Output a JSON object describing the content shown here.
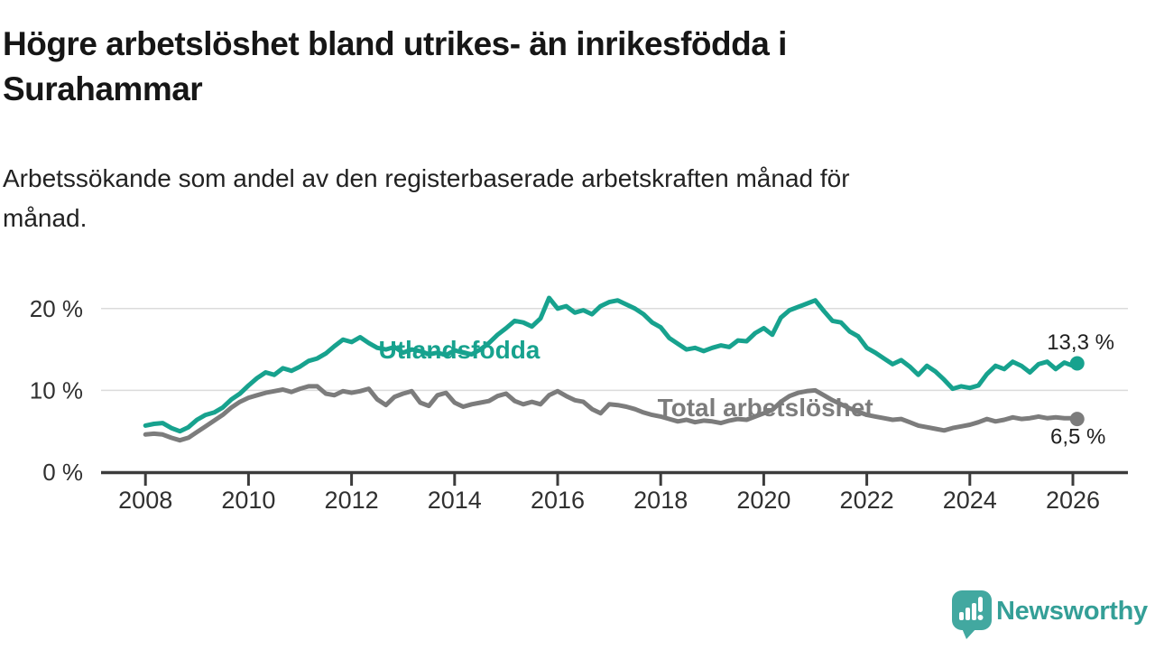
{
  "header": {
    "title_lines": [
      "Högre arbetslöshet bland utrikes- än inrikesfödda i",
      "Surahammar"
    ],
    "subtitle_lines": [
      "Arbetssökande som andel av den registerbaserade arbetskraften månad för",
      "månad."
    ]
  },
  "chart_data": {
    "type": "line",
    "title": "Högre arbetslöshet bland utrikes- än inrikesfödda i Surahammar",
    "subtitle": "Arbetssökande som andel av den registerbaserade arbetskraften månad för månad.",
    "unit": "%",
    "grid": "horizontal",
    "legend_position": "inline-labels",
    "xlim": [
      2007.14,
      2027.07
    ],
    "ylim": [
      0,
      24.6
    ],
    "y_ticks": [
      {
        "value": 0,
        "label": "0 %"
      },
      {
        "value": 10,
        "label": "10 %"
      },
      {
        "value": 20,
        "label": "20 %"
      }
    ],
    "x_ticks": [
      {
        "value": 2008,
        "label": "2008"
      },
      {
        "value": 2010,
        "label": "2010"
      },
      {
        "value": 2012,
        "label": "2012"
      },
      {
        "value": 2014,
        "label": "2014"
      },
      {
        "value": 2016,
        "label": "2016"
      },
      {
        "value": 2018,
        "label": "2018"
      },
      {
        "value": 2020,
        "label": "2020"
      },
      {
        "value": 2022,
        "label": "2022"
      },
      {
        "value": 2024,
        "label": "2024"
      },
      {
        "value": 2026,
        "label": "2026"
      }
    ],
    "x": [
      2008,
      2008.167,
      2008.333,
      2008.5,
      2008.667,
      2008.833,
      2009,
      2009.167,
      2009.333,
      2009.5,
      2009.667,
      2009.833,
      2010,
      2010.167,
      2010.333,
      2010.5,
      2010.667,
      2010.833,
      2011,
      2011.167,
      2011.333,
      2011.5,
      2011.667,
      2011.833,
      2012,
      2012.167,
      2012.333,
      2012.5,
      2012.667,
      2012.833,
      2013,
      2013.167,
      2013.333,
      2013.5,
      2013.667,
      2013.833,
      2014,
      2014.167,
      2014.333,
      2014.5,
      2014.667,
      2014.833,
      2015,
      2015.167,
      2015.333,
      2015.5,
      2015.667,
      2015.833,
      2016,
      2016.167,
      2016.333,
      2016.5,
      2016.667,
      2016.833,
      2017,
      2017.167,
      2017.333,
      2017.5,
      2017.667,
      2017.833,
      2018,
      2018.167,
      2018.333,
      2018.5,
      2018.667,
      2018.833,
      2019,
      2019.167,
      2019.333,
      2019.5,
      2019.667,
      2019.833,
      2020,
      2020.167,
      2020.333,
      2020.5,
      2020.667,
      2020.833,
      2021,
      2021.167,
      2021.333,
      2021.5,
      2021.667,
      2021.833,
      2022,
      2022.167,
      2022.333,
      2022.5,
      2022.667,
      2022.833,
      2023,
      2023.167,
      2023.333,
      2023.5,
      2023.667,
      2023.833,
      2024,
      2024.167,
      2024.333,
      2024.5,
      2024.667,
      2024.833,
      2025,
      2025.167,
      2025.333,
      2025.5,
      2025.667,
      2025.833,
      2026,
      2026.083
    ],
    "series": [
      {
        "name": "Utlandsfödda",
        "color": "#17a28e",
        "end_label": "13,3 %",
        "end_value": 13.3,
        "end_label_pos": {
          "x": 2026.15,
          "y": 15.0
        },
        "name_label_pos": {
          "x": 2014.09,
          "y": 13.9
        },
        "values": [
          5.7,
          5.9,
          6.0,
          5.4,
          5.0,
          5.5,
          6.4,
          7.0,
          7.3,
          7.9,
          8.9,
          9.6,
          10.6,
          11.5,
          12.2,
          11.9,
          12.7,
          12.4,
          12.9,
          13.6,
          13.9,
          14.5,
          15.4,
          16.2,
          15.9,
          16.5,
          15.8,
          15.2,
          15.0,
          15.3,
          14.6,
          15.0,
          14.8,
          14.4,
          14.6,
          14.3,
          14.9,
          14.6,
          14.4,
          15.0,
          15.8,
          16.8,
          17.6,
          18.5,
          18.3,
          17.8,
          18.8,
          21.3,
          20.0,
          20.3,
          19.5,
          19.8,
          19.3,
          20.3,
          20.8,
          21.0,
          20.5,
          20.0,
          19.3,
          18.3,
          17.7,
          16.4,
          15.7,
          15.0,
          15.2,
          14.8,
          15.2,
          15.5,
          15.3,
          16.1,
          16.0,
          17.0,
          17.6,
          16.8,
          18.9,
          19.8,
          20.2,
          20.6,
          21.0,
          19.7,
          18.5,
          18.3,
          17.2,
          16.6,
          15.2,
          14.6,
          13.9,
          13.2,
          13.7,
          12.9,
          11.9,
          13.0,
          12.3,
          11.3,
          10.2,
          10.5,
          10.3,
          10.6,
          12.0,
          13.0,
          12.6,
          13.5,
          13.0,
          12.2,
          13.2,
          13.5,
          12.6,
          13.4,
          13.0,
          13.3
        ]
      },
      {
        "name": "Total arbetslöshet",
        "color": "#7c7c7c",
        "end_label": "6,5 %",
        "end_value": 6.5,
        "end_label_pos": {
          "x": 2026.1,
          "y": 3.5
        },
        "name_label_pos": {
          "x": 2020.03,
          "y": 6.84
        },
        "values": [
          4.6,
          4.7,
          4.6,
          4.2,
          3.9,
          4.2,
          4.9,
          5.6,
          6.3,
          7.0,
          7.9,
          8.6,
          9.1,
          9.4,
          9.7,
          9.9,
          10.1,
          9.8,
          10.2,
          10.5,
          10.5,
          9.6,
          9.4,
          9.9,
          9.7,
          9.9,
          10.2,
          8.9,
          8.2,
          9.2,
          9.6,
          9.9,
          8.5,
          8.1,
          9.4,
          9.7,
          8.5,
          8.0,
          8.3,
          8.5,
          8.7,
          9.3,
          9.6,
          8.7,
          8.3,
          8.6,
          8.3,
          9.4,
          9.9,
          9.3,
          8.8,
          8.6,
          7.7,
          7.2,
          8.3,
          8.2,
          8.0,
          7.7,
          7.3,
          7.0,
          6.8,
          6.5,
          6.2,
          6.4,
          6.1,
          6.3,
          6.2,
          6.0,
          6.3,
          6.5,
          6.4,
          6.8,
          7.2,
          7.6,
          8.6,
          9.3,
          9.7,
          9.9,
          10.0,
          9.4,
          8.8,
          8.3,
          7.8,
          7.4,
          7.0,
          6.8,
          6.6,
          6.4,
          6.5,
          6.1,
          5.7,
          5.5,
          5.3,
          5.1,
          5.4,
          5.6,
          5.8,
          6.1,
          6.5,
          6.2,
          6.4,
          6.7,
          6.5,
          6.6,
          6.8,
          6.6,
          6.7,
          6.6,
          6.6,
          6.5
        ]
      }
    ],
    "style": {
      "grid_color": "#dbdbdb",
      "axis_color": "#3c3c3c",
      "tick_label_color": "#303030",
      "value_label_color": "#1f1f1f"
    }
  },
  "footer": {
    "brand": "Newsworthy",
    "logo_color": "#42a8a0"
  }
}
